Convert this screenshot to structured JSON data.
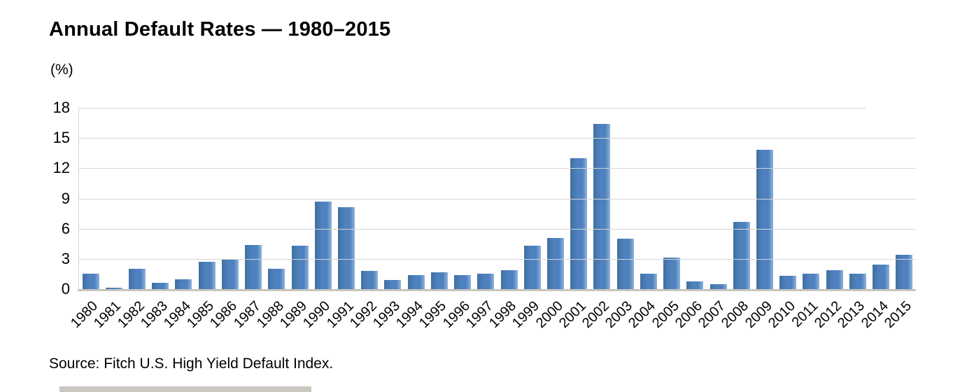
{
  "chart_data": {
    "type": "bar",
    "title": "Annual Default Rates — 1980–2015",
    "unit_label": "(%)",
    "xlabel": "",
    "ylabel": "(%)",
    "categories": [
      "1980",
      "1981",
      "1982",
      "1983",
      "1984",
      "1985",
      "1986",
      "1987",
      "1988",
      "1989",
      "1990",
      "1991",
      "1992",
      "1993",
      "1994",
      "1995",
      "1996",
      "1997",
      "1998",
      "1999",
      "2000",
      "2001",
      "2002",
      "2003",
      "2004",
      "2005",
      "2006",
      "2007",
      "2008",
      "2009",
      "2010",
      "2011",
      "2012",
      "2013",
      "2014",
      "2015"
    ],
    "values": [
      1.5,
      0.15,
      2.0,
      0.6,
      1.0,
      2.7,
      3.0,
      4.4,
      2.0,
      4.3,
      8.7,
      8.1,
      1.8,
      0.9,
      1.4,
      1.7,
      1.4,
      1.5,
      1.9,
      4.3,
      5.1,
      13.0,
      16.4,
      5.0,
      1.5,
      3.1,
      0.8,
      0.5,
      6.7,
      13.8,
      1.3,
      1.5,
      1.9,
      1.5,
      2.4,
      3.4
    ],
    "yticks": [
      0,
      3,
      6,
      9,
      12,
      15,
      18
    ],
    "ylim": [
      0,
      18
    ],
    "grid": "horizontal",
    "legend": "none",
    "source": "Source: Fitch U.S. High Yield Default Index.",
    "colors": {
      "bar": "#4E81BE",
      "bar_dark": "#41709F",
      "bar_light": "#8FB4DC",
      "gridline": "#D6D6D6",
      "axis_line": "#C6C5BF",
      "text": "#000000"
    }
  }
}
